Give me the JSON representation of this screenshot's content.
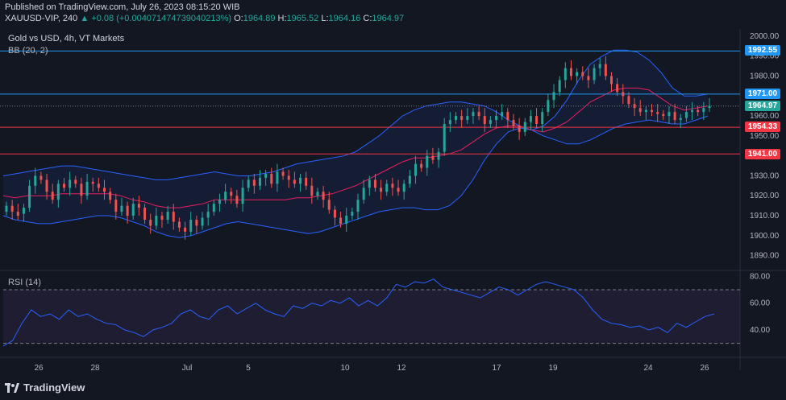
{
  "header": {
    "published": "Published on TradingView.com, July 26, 2023 08:15:20 WIB",
    "symbol": "XAUUSD-VIP, 240",
    "change": "▲ +0.08 (+0.0040714747390402​13%)",
    "open_label": "O:",
    "open": "1964.89",
    "high_label": "H:",
    "high": "1965.52",
    "low_label": "L:",
    "low": "1964.16",
    "close_label": "C:",
    "close": "1964.97"
  },
  "legend": {
    "title": "Gold vs USD, 4h, VT Markets",
    "bb": "BB (20, 2)",
    "rsi": "RSI (14)"
  },
  "brand": {
    "name": "TradingView"
  },
  "colors": {
    "background": "#131722",
    "up": "#26a69a",
    "down": "#ef5350",
    "bb_band": "#2962ff",
    "bb_basis": "#e91e63",
    "rsi_line": "#2962ff",
    "rsi_fill": "#7e57c2",
    "support_line": "#f23645",
    "resistance_line": "#2196f3"
  },
  "chart_data": [
    {
      "type": "candlestick",
      "title": "Gold vs USD, 4h, VT Markets",
      "y_axis": {
        "ticks": [
          "2000.00",
          "1990.00",
          "1980.00",
          "1970.00",
          "1960.00",
          "1950.00",
          "1940.00",
          "1930.00",
          "1920.00",
          "1910.00",
          "1900.00",
          "1890.00"
        ],
        "range": [
          1885,
          2002
        ]
      },
      "x_axis": {
        "ticks": [
          "26",
          "28",
          "Jul",
          "5",
          "10",
          "12",
          "17",
          "19",
          "24",
          "26"
        ]
      },
      "horizontal_levels": [
        {
          "value": 1992.55,
          "label": "1992.55",
          "color": "#2196f3"
        },
        {
          "value": 1971.0,
          "label": "1971.00",
          "color": "#2196f3"
        },
        {
          "value": 1954.33,
          "label": "1954.33",
          "color": "#f23645"
        },
        {
          "value": 1941.0,
          "label": "1941.00",
          "color": "#f23645"
        }
      ],
      "last_price": {
        "value": 1964.97,
        "label": "1964.97"
      },
      "candles_close": [
        1915,
        1912,
        1910,
        1914,
        1925,
        1930,
        1928,
        1922,
        1918,
        1926,
        1924,
        1928,
        1926,
        1920,
        1927,
        1926,
        1924,
        1922,
        1918,
        1912,
        1915,
        1910,
        1916,
        1914,
        1908,
        1905,
        1910,
        1908,
        1912,
        1907,
        1904,
        1902,
        1908,
        1905,
        1909,
        1912,
        1916,
        1918,
        1922,
        1920,
        1916,
        1924,
        1928,
        1925,
        1929,
        1931,
        1926,
        1932,
        1930,
        1928,
        1926,
        1929,
        1925,
        1920,
        1922,
        1918,
        1913,
        1909,
        1906,
        1910,
        1912,
        1918,
        1924,
        1928,
        1924,
        1922,
        1926,
        1924,
        1922,
        1926,
        1930,
        1936,
        1934,
        1940,
        1938,
        1942,
        1956,
        1958,
        1960,
        1958,
        1960,
        1962,
        1960,
        1956,
        1958,
        1960,
        1962,
        1958,
        1955,
        1952,
        1957,
        1960,
        1956,
        1962,
        1968,
        1972,
        1978,
        1984,
        1980,
        1982,
        1980,
        1978,
        1984,
        1986,
        1980,
        1976,
        1972,
        1970,
        1966,
        1964,
        1962,
        1963,
        1962,
        1961,
        1960,
        1962,
        1958,
        1959,
        1962,
        1963,
        1962,
        1964,
        1965
      ],
      "candles_open": [
        1912,
        1915,
        1912,
        1911,
        1914,
        1925,
        1930,
        1928,
        1922,
        1918,
        1926,
        1924,
        1928,
        1926,
        1920,
        1927,
        1926,
        1924,
        1922,
        1918,
        1912,
        1915,
        1910,
        1916,
        1914,
        1908,
        1905,
        1910,
        1908,
        1912,
        1907,
        1904,
        1902,
        1908,
        1905,
        1909,
        1912,
        1916,
        1918,
        1922,
        1920,
        1916,
        1924,
        1928,
        1925,
        1929,
        1931,
        1926,
        1932,
        1930,
        1928,
        1926,
        1929,
        1925,
        1920,
        1922,
        1918,
        1913,
        1909,
        1906,
        1910,
        1912,
        1918,
        1924,
        1928,
        1924,
        1922,
        1926,
        1924,
        1922,
        1926,
        1930,
        1936,
        1934,
        1940,
        1938,
        1942,
        1956,
        1958,
        1960,
        1958,
        1960,
        1962,
        1960,
        1956,
        1958,
        1960,
        1962,
        1958,
        1955,
        1952,
        1957,
        1960,
        1956,
        1962,
        1968,
        1972,
        1978,
        1984,
        1980,
        1982,
        1980,
        1978,
        1984,
        1986,
        1980,
        1976,
        1972,
        1970,
        1966,
        1964,
        1962,
        1963,
        1962,
        1961,
        1960,
        1962,
        1958,
        1959,
        1962,
        1963,
        1962,
        1964
      ],
      "bb_upper": [
        1930,
        1931,
        1932,
        1933,
        1934,
        1935,
        1935,
        1934,
        1933,
        1932,
        1931,
        1930,
        1929,
        1928,
        1928,
        1929,
        1930,
        1931,
        1932,
        1931,
        1930,
        1930,
        1931,
        1932,
        1934,
        1936,
        1937,
        1938,
        1939,
        1940,
        1942,
        1946,
        1950,
        1955,
        1960,
        1963,
        1965,
        1966,
        1967,
        1967,
        1966,
        1965,
        1962,
        1958,
        1955,
        1953,
        1955,
        1960,
        1968,
        1978,
        1986,
        1990,
        1993,
        1993,
        1992,
        1988,
        1982,
        1974,
        1970,
        1970,
        1971
      ],
      "bb_lower": [
        1910,
        1908,
        1907,
        1906,
        1906,
        1907,
        1908,
        1909,
        1910,
        1910,
        1909,
        1907,
        1905,
        1902,
        1900,
        1899,
        1900,
        1902,
        1904,
        1906,
        1907,
        1906,
        1905,
        1904,
        1903,
        1902,
        1901,
        1902,
        1904,
        1906,
        1908,
        1910,
        1912,
        1913,
        1914,
        1914,
        1913,
        1913,
        1915,
        1920,
        1928,
        1938,
        1946,
        1952,
        1954,
        1953,
        1950,
        1948,
        1946,
        1946,
        1948,
        1951,
        1954,
        1956,
        1957,
        1958,
        1957,
        1956,
        1956,
        1958,
        1960
      ],
      "bb_basis": [
        1920,
        1919,
        1920,
        1920,
        1920,
        1921,
        1921,
        1921,
        1921,
        1921,
        1920,
        1918,
        1917,
        1915,
        1914,
        1914,
        1915,
        1916,
        1918,
        1918,
        1918,
        1918,
        1918,
        1918,
        1918,
        1919,
        1919,
        1920,
        1921,
        1923,
        1925,
        1928,
        1931,
        1934,
        1937,
        1939,
        1939,
        1940,
        1941,
        1943,
        1947,
        1951,
        1954,
        1955,
        1955,
        1953,
        1952,
        1954,
        1957,
        1962,
        1967,
        1970,
        1973,
        1974,
        1974,
        1973,
        1969,
        1965,
        1963,
        1964,
        1965
      ]
    },
    {
      "type": "line",
      "title": "RSI (14)",
      "y_axis": {
        "ticks": [
          "80.00",
          "60.00",
          "40.00"
        ],
        "range": [
          22,
          82
        ]
      },
      "levels": [
        70,
        30
      ],
      "values": [
        28,
        32,
        45,
        55,
        50,
        52,
        48,
        55,
        50,
        52,
        48,
        45,
        44,
        40,
        38,
        35,
        40,
        42,
        45,
        52,
        55,
        50,
        48,
        55,
        58,
        52,
        56,
        60,
        55,
        52,
        50,
        58,
        56,
        60,
        58,
        62,
        60,
        64,
        58,
        62,
        58,
        64,
        74,
        72,
        76,
        75,
        78,
        72,
        70,
        68,
        66,
        64,
        68,
        72,
        70,
        66,
        70,
        74,
        76,
        74,
        72,
        70,
        64,
        55,
        48,
        45,
        44,
        42,
        43,
        40,
        42,
        38,
        45,
        42,
        46,
        50,
        52
      ]
    }
  ]
}
